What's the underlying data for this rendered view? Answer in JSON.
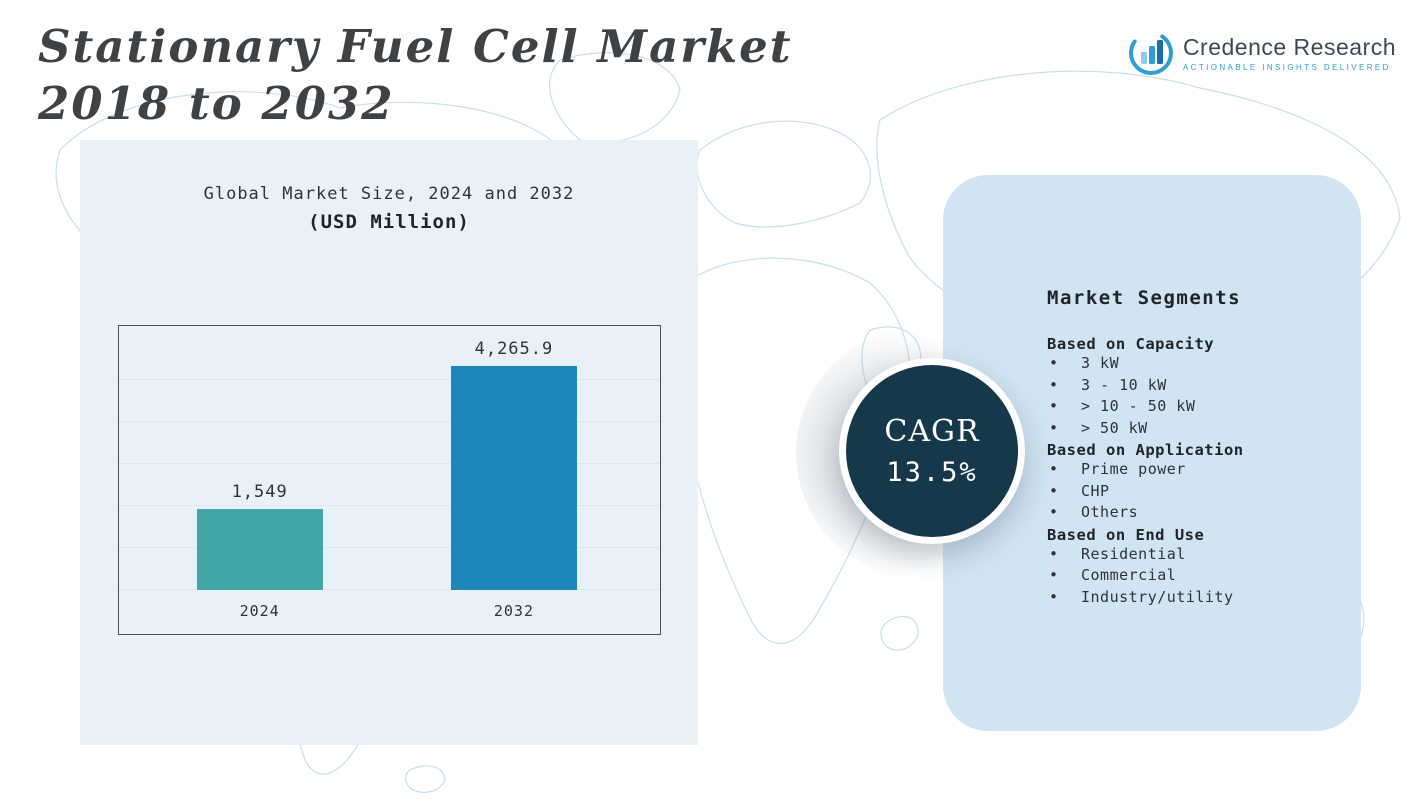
{
  "page": {
    "title_line1": "Stationary Fuel Cell Market",
    "title_line2": "2018 to 2032"
  },
  "logo": {
    "name": "Credence Research",
    "tagline": "Actionable Insights Delivered"
  },
  "chart_panel": {
    "title": "Global Market Size, 2024 and 2032",
    "subtitle": "(USD Million)"
  },
  "chart_data": {
    "type": "bar",
    "title": "Global Market Size, 2024 and 2032 (USD Million)",
    "categories": [
      "2024",
      "2032"
    ],
    "values": [
      1549,
      4265.9
    ],
    "value_labels": [
      "1,549",
      "4,265.9"
    ],
    "bar_colors": [
      "#43a6a6",
      "#1d87ba"
    ],
    "bar_positions_pct": [
      26,
      73
    ],
    "xlabel": "",
    "ylabel": "USD Million",
    "ylim": [
      0,
      4800
    ],
    "grid": true,
    "legend": false
  },
  "cagr": {
    "label": "CAGR",
    "value": "13.5%"
  },
  "segments": {
    "heading": "Market Segments",
    "groups": [
      {
        "title": "Based on Capacity",
        "items": [
          "3 kW",
          "3 - 10 kW",
          "> 10 - 50 kW",
          "> 50 kW"
        ]
      },
      {
        "title": "Based on Application",
        "items": [
          "Prime power",
          "CHP",
          "Others"
        ]
      },
      {
        "title": "Based on End Use",
        "items": [
          "Residential",
          "Commercial",
          "Industry/utility"
        ]
      }
    ]
  },
  "colors": {
    "bar_2024": "#43a6a6",
    "bar_2032": "#1d87ba",
    "cagr_circle": "#16384b",
    "panel_left": "#e9f1f8",
    "panel_right": "#d0e4f1",
    "map_line": "#c6dfee",
    "accent_blue": "#2e9fd0"
  }
}
